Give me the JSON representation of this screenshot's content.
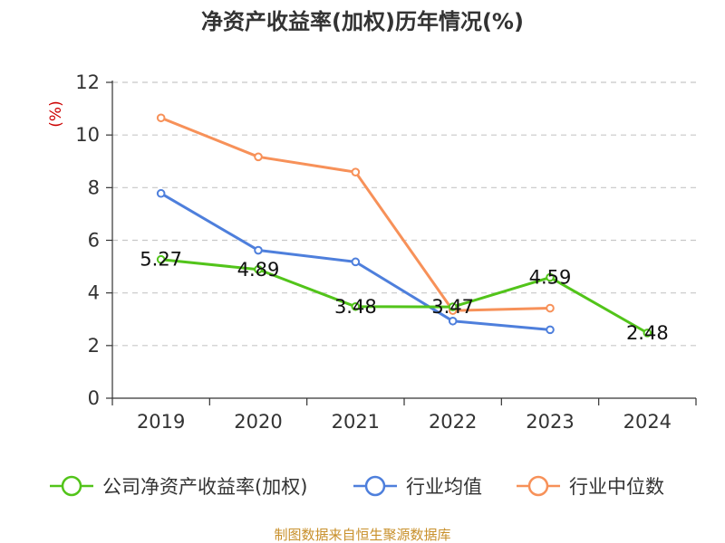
{
  "chart_data": {
    "type": "line",
    "title": "净资产收益率(加权)历年情况(%)",
    "unit_label": "(%)",
    "categories": [
      "2019",
      "2020",
      "2021",
      "2022",
      "2023",
      "2024"
    ],
    "ylim": [
      0,
      12
    ],
    "yticks": [
      "0",
      "2",
      "4",
      "6",
      "8",
      "10",
      "12"
    ],
    "grid": true,
    "legend_position": "bottom",
    "series": [
      {
        "name": "公司净资产收益率(加权)",
        "color": "#52c41a",
        "values": [
          5.27,
          4.89,
          3.48,
          3.47,
          4.59,
          2.48
        ],
        "labels": [
          "5.27",
          "4.89",
          "3.48",
          "3.47",
          "4.59",
          "2.48"
        ]
      },
      {
        "name": "行业均值",
        "color": "#4e7fdc",
        "values": [
          7.78,
          5.62,
          5.18,
          2.93,
          2.6,
          null
        ]
      },
      {
        "name": "行业中位数",
        "color": "#f79159",
        "values": [
          10.65,
          9.17,
          8.59,
          3.33,
          3.42,
          null
        ]
      }
    ]
  },
  "source": "制图数据来自恒生聚源数据库"
}
